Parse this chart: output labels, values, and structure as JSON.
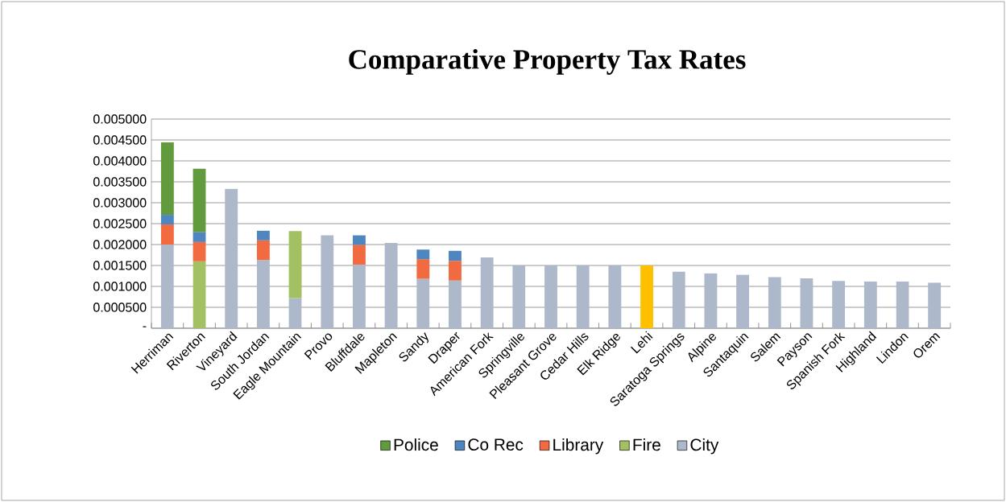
{
  "chart_data": {
    "type": "bar",
    "title": "Comparative Property Tax Rates",
    "categories": [
      "Herriman",
      "Riverton",
      "Vineyard",
      "South Jordan",
      "Eagle Mountain",
      "Provo",
      "Bluffdale",
      "Mapleton",
      "Sandy",
      "Draper",
      "American Fork",
      "Springville",
      "Pleasant Grove",
      "Cedar Hills",
      "Elk Ridge",
      "Lehi",
      "Saratoga Springs",
      "Alpine",
      "Santaquin",
      "Salem",
      "Payson",
      "Spanish Fork",
      "Highland",
      "Lindon",
      "Orem"
    ],
    "stacked": true,
    "series": [
      {
        "name": "City",
        "color": "#adb8cb",
        "colors": [
          "#adb8cb",
          "#adb8cb",
          "#adb8cb",
          "#adb8cb",
          "#adb8cb",
          "#adb8cb",
          "#adb8cb",
          "#adb8cb",
          "#adb8cb",
          "#adb8cb",
          "#adb8cb",
          "#adb8cb",
          "#adb8cb",
          "#adb8cb",
          "#adb8cb",
          "#ffc000",
          "#adb8cb",
          "#adb8cb",
          "#adb8cb",
          "#adb8cb",
          "#adb8cb",
          "#adb8cb",
          "#adb8cb",
          "#adb8cb",
          "#adb8cb"
        ],
        "values": [
          0.002,
          null,
          0.00333,
          0.00163,
          0.00072,
          0.00222,
          0.00152,
          0.00204,
          0.00118,
          0.00114,
          0.00169,
          0.0015,
          0.0015,
          0.0015,
          0.0015,
          0.0015,
          0.00135,
          0.00131,
          0.00128,
          0.00122,
          0.00119,
          0.00113,
          0.00112,
          0.00112,
          0.00109
        ]
      },
      {
        "name": "Fire",
        "color": "#a3c063",
        "values": [
          null,
          0.0016,
          null,
          null,
          0.0016,
          null,
          null,
          null,
          null,
          null,
          null,
          null,
          null,
          null,
          null,
          null,
          null,
          null,
          null,
          null,
          null,
          null,
          null,
          null,
          null
        ]
      },
      {
        "name": "Library",
        "color": "#f26a3f",
        "values": [
          0.00048,
          0.00046,
          null,
          0.00047,
          null,
          null,
          0.00047,
          null,
          0.00047,
          0.00047,
          null,
          null,
          null,
          null,
          null,
          null,
          null,
          null,
          null,
          null,
          null,
          null,
          null,
          null,
          null
        ]
      },
      {
        "name": "Co Rec",
        "color": "#4f86c0",
        "values": [
          0.00023,
          0.00024,
          null,
          0.00023,
          null,
          null,
          0.00023,
          null,
          0.00023,
          0.00024,
          null,
          null,
          null,
          null,
          null,
          null,
          null,
          null,
          null,
          null,
          null,
          null,
          null,
          null,
          null
        ]
      },
      {
        "name": "Police",
        "color": "#629b3e",
        "values": [
          0.00173,
          0.00151,
          null,
          null,
          null,
          null,
          null,
          null,
          null,
          null,
          null,
          null,
          null,
          null,
          null,
          null,
          null,
          null,
          null,
          null,
          null,
          null,
          null,
          null,
          null
        ]
      }
    ],
    "ylim": [
      0,
      0.005
    ],
    "yticks": [
      {
        "value": 0,
        "label": "-"
      },
      {
        "value": 0.0005,
        "label": "0.000500"
      },
      {
        "value": 0.001,
        "label": "0.001000"
      },
      {
        "value": 0.0015,
        "label": "0.001500"
      },
      {
        "value": 0.002,
        "label": "0.002000"
      },
      {
        "value": 0.0025,
        "label": "0.002500"
      },
      {
        "value": 0.003,
        "label": "0.003000"
      },
      {
        "value": 0.0035,
        "label": "0.003500"
      },
      {
        "value": 0.004,
        "label": "0.004000"
      },
      {
        "value": 0.0045,
        "label": "0.004500"
      },
      {
        "value": 0.005,
        "label": "0.005000"
      }
    ],
    "grid": "y",
    "legend": "bottom"
  }
}
